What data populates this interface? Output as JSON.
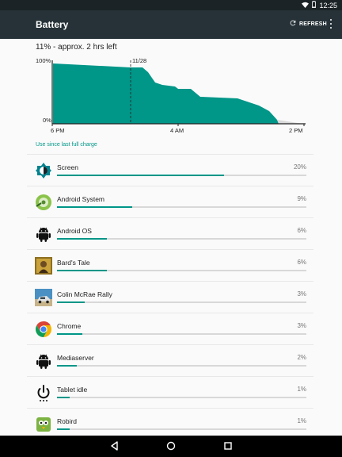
{
  "status_bar": {
    "time": "12:25",
    "icons": [
      "wifi-icon",
      "battery-icon"
    ]
  },
  "app_bar": {
    "title": "Battery",
    "refresh_label": "REFRESH",
    "icons": [
      "refresh-icon",
      "more-vert-icon"
    ]
  },
  "summary": "11% - approx. 2 hrs left",
  "chart_data": {
    "type": "area",
    "y_ticks": [
      "100%",
      "0%"
    ],
    "x_ticks": [
      "6 PM",
      "4 AM",
      "2 PM"
    ],
    "marker_label": "11/28",
    "colors": {
      "fill": "#009688",
      "projection": "#d9d9d9"
    }
  },
  "use_since_label": "Use since last full charge",
  "items": [
    {
      "name": "Screen",
      "percent": "20%",
      "level": 0.67,
      "icon": "brightness-icon"
    },
    {
      "name": "Android System",
      "percent": "9%",
      "level": 0.3,
      "icon": "android-system-icon"
    },
    {
      "name": "Android OS",
      "percent": "6%",
      "level": 0.2,
      "icon": "android-icon"
    },
    {
      "name": "Bard's Tale",
      "percent": "6%",
      "level": 0.2,
      "icon": "bards-tale-icon"
    },
    {
      "name": "Colin McRae Rally",
      "percent": "3%",
      "level": 0.11,
      "icon": "colin-mcrae-rally-icon"
    },
    {
      "name": "Chrome",
      "percent": "3%",
      "level": 0.1,
      "icon": "chrome-icon"
    },
    {
      "name": "Mediaserver",
      "percent": "2%",
      "level": 0.08,
      "icon": "android-icon"
    },
    {
      "name": "Tablet idle",
      "percent": "1%",
      "level": 0.05,
      "icon": "power-icon"
    },
    {
      "name": "Robird",
      "percent": "1%",
      "level": 0.05,
      "icon": "robird-icon"
    }
  ],
  "nav_bar": {
    "icons": [
      "back-icon",
      "home-icon",
      "recents-icon"
    ]
  },
  "colors": {
    "accent": "#009688",
    "app_bar": "#263238",
    "status_bar": "#1b2327"
  }
}
